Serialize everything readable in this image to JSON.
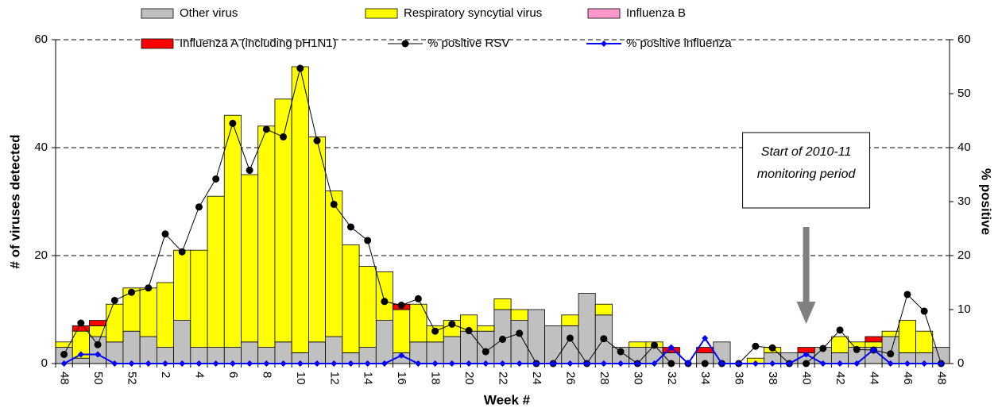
{
  "chart_data": {
    "type": "bar",
    "stacked": true,
    "x_label": "Week #",
    "y_label": "# of viruses detected",
    "y2_label": "% positive",
    "categories": [
      "48",
      null,
      "50",
      null,
      "52",
      null,
      "2",
      null,
      "4",
      null,
      "6",
      null,
      "8",
      null,
      "10",
      null,
      "12",
      null,
      "14",
      null,
      "16",
      null,
      "18",
      null,
      "20",
      null,
      "22",
      null,
      "24",
      null,
      "26",
      null,
      "28",
      null,
      "30",
      null,
      "32",
      null,
      "34",
      null,
      "36",
      null,
      "38",
      null,
      "40",
      null,
      "42",
      null,
      "44",
      null,
      "46",
      null,
      "48"
    ],
    "series": [
      {
        "name": "Other virus",
        "color": "#c0c0c0",
        "values": [
          3,
          1,
          5,
          4,
          6,
          5,
          3,
          8,
          3,
          3,
          3,
          4,
          3,
          4,
          2,
          4,
          5,
          2,
          3,
          8,
          2,
          4,
          4,
          5,
          6,
          6,
          10,
          8,
          10,
          7,
          7,
          13,
          9,
          3,
          3,
          3,
          2,
          0,
          2,
          4,
          0,
          0,
          2,
          2,
          2,
          3,
          2,
          3,
          3,
          5,
          2,
          2,
          3
        ]
      },
      {
        "name": "Respiratory syncytial virus",
        "color": "#ffff00",
        "values": [
          1,
          5,
          2,
          7,
          8,
          9,
          12,
          13,
          18,
          28,
          43,
          31,
          41,
          45,
          53,
          38,
          27,
          20,
          15,
          9,
          8,
          7,
          3,
          3,
          3,
          1,
          2,
          2,
          0,
          0,
          2,
          0,
          2,
          0,
          1,
          1,
          0,
          0,
          0,
          0,
          0,
          1,
          1,
          0,
          0,
          0,
          3,
          1,
          1,
          1,
          6,
          4,
          0
        ]
      },
      {
        "name": "Influenza B",
        "color": "#ff99cc",
        "values": [
          0,
          0,
          0,
          0,
          0,
          0,
          0,
          0,
          0,
          0,
          0,
          0,
          0,
          0,
          0,
          0,
          0,
          0,
          0,
          0,
          0,
          0,
          0,
          0,
          0,
          0,
          0,
          0,
          0,
          0,
          0,
          0,
          0,
          0,
          0,
          0,
          0,
          0,
          0,
          0,
          0,
          0,
          0,
          0,
          0,
          0,
          0,
          0,
          0,
          0,
          0,
          0,
          0
        ]
      },
      {
        "name": "Influenza A (including pH1N1)",
        "color": "#ff0000",
        "values": [
          0,
          1,
          1,
          0,
          0,
          0,
          0,
          0,
          0,
          0,
          0,
          0,
          0,
          0,
          0,
          0,
          0,
          0,
          0,
          0,
          1,
          0,
          0,
          0,
          0,
          0,
          0,
          0,
          0,
          0,
          0,
          0,
          0,
          0,
          0,
          0,
          1,
          0,
          1,
          0,
          0,
          0,
          0,
          0,
          1,
          0,
          0,
          0,
          1,
          0,
          0,
          0,
          0
        ]
      },
      {
        "name": "% positive RSV",
        "color": "#000000",
        "axis": "y2",
        "marker": "circle",
        "values": [
          1.7,
          7.5,
          3.5,
          11.7,
          13.2,
          14,
          24,
          20.7,
          29,
          34.2,
          44.5,
          35.8,
          43.4,
          42,
          54.7,
          41.3,
          29.5,
          25.3,
          22.8,
          11.5,
          10.8,
          12,
          6,
          7.3,
          6.1,
          2.2,
          4.5,
          5.6,
          0,
          0,
          4.7,
          0,
          4.6,
          2.2,
          0,
          3.4,
          0,
          0,
          0,
          0,
          0,
          3.2,
          2.9,
          0,
          0,
          2.8,
          6.2,
          2.6,
          2.5,
          1.8,
          12.8,
          9.7,
          0
        ]
      },
      {
        "name": "% positive influenza",
        "color": "#0000ff",
        "axis": "y2",
        "marker": "diamond",
        "values": [
          0,
          1.7,
          1.7,
          0,
          0,
          0,
          0,
          0,
          0,
          0,
          0,
          0,
          0,
          0,
          0,
          0,
          0,
          0,
          0,
          0,
          1.5,
          0,
          0,
          0,
          0,
          0,
          0,
          0,
          0,
          0,
          0,
          0,
          0,
          0,
          0,
          0,
          3,
          0,
          4.7,
          0,
          0,
          0,
          0,
          0,
          1.7,
          0,
          0,
          0,
          2.6,
          0,
          0,
          0,
          0
        ]
      }
    ],
    "ylim": [
      0,
      60
    ],
    "yticks": [
      0,
      20,
      40,
      60
    ],
    "y2lim": [
      0,
      60
    ],
    "y2ticks": [
      0,
      10,
      20,
      30,
      40,
      50,
      60
    ],
    "grid": true,
    "annotation": {
      "lines": [
        "Start of 2010-11",
        "monitoring period"
      ],
      "category_index": 44
    }
  }
}
